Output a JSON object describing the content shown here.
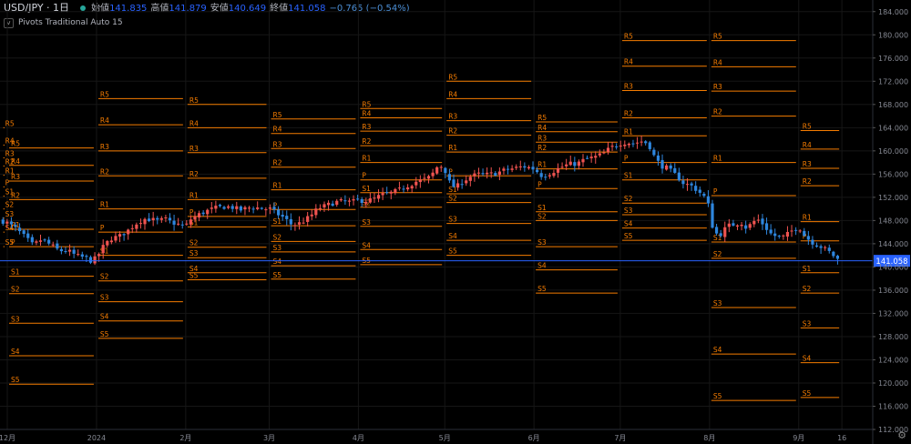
{
  "header": {
    "symbol": "USD/JPY · 1日",
    "open_label": "始値",
    "open": "141.835",
    "high_label": "高値",
    "high": "141.879",
    "low_label": "安値",
    "low": "140.649",
    "close_label": "終値",
    "close": "141.058",
    "change": "−0.765 (−0.54%)"
  },
  "indicator": {
    "name": "Pivots Traditional Auto 15"
  },
  "current_price_label": "141.058",
  "colors": {
    "up": "#ef5350",
    "down": "#2e86de",
    "pivot": "#f57c00",
    "price_line": "#2962ff",
    "grid": "#161616"
  },
  "chart_data": {
    "type": "candlestick",
    "ylim": [
      112,
      186
    ],
    "y_ticks": [
      "184.000",
      "180.000",
      "176.000",
      "172.000",
      "168.000",
      "164.000",
      "160.000",
      "156.000",
      "152.000",
      "148.000",
      "144.000",
      "140.000",
      "136.000",
      "132.000",
      "128.000",
      "124.000",
      "120.000",
      "116.000",
      "112.000"
    ],
    "x_ticks": [
      {
        "label": "12月",
        "x": 0
      },
      {
        "label": "2024",
        "x": 31
      },
      {
        "label": "2月",
        "x": 62
      },
      {
        "label": "3月",
        "x": 91
      },
      {
        "label": "4月",
        "x": 122
      },
      {
        "label": "5月",
        "x": 152
      },
      {
        "label": "6月",
        "x": 183
      },
      {
        "label": "7月",
        "x": 213
      },
      {
        "label": "8月",
        "x": 244
      },
      {
        "label": "9月",
        "x": 275
      },
      {
        "label": "16",
        "x": 290
      }
    ],
    "x_range": [
      -2,
      300
    ],
    "path": [
      [
        -2,
        148
      ],
      [
        0,
        147.6
      ],
      [
        3,
        146.6
      ],
      [
        6,
        145.2
      ],
      [
        9,
        143.7
      ],
      [
        12,
        144.8
      ],
      [
        15,
        143.8
      ],
      [
        18,
        142.8
      ],
      [
        21,
        142.8
      ],
      [
        24,
        141.9
      ],
      [
        27,
        141.6
      ],
      [
        29,
        141.1
      ],
      [
        31,
        141.5
      ],
      [
        33,
        143.3
      ],
      [
        36,
        144.9
      ],
      [
        39,
        145.3
      ],
      [
        42,
        146.3
      ],
      [
        44,
        147.2
      ],
      [
        46,
        147.9
      ],
      [
        48,
        148.3
      ],
      [
        50,
        148.2
      ],
      [
        52,
        147.9
      ],
      [
        55,
        148.2
      ],
      [
        57,
        147.7
      ],
      [
        59,
        147.4
      ],
      [
        61,
        147.1
      ],
      [
        62,
        146.9
      ],
      [
        63,
        148.0
      ],
      [
        66,
        148.9
      ],
      [
        69,
        149.6
      ],
      [
        72,
        150.1
      ],
      [
        75,
        150.4
      ],
      [
        78,
        150.3
      ],
      [
        81,
        149.8
      ],
      [
        84,
        150.2
      ],
      [
        86,
        150.3
      ],
      [
        88,
        150.1
      ],
      [
        90,
        150.0
      ],
      [
        91,
        150.1
      ],
      [
        93,
        149.4
      ],
      [
        96,
        148.5
      ],
      [
        99,
        147.2
      ],
      [
        102,
        147.6
      ],
      [
        105,
        148.6
      ],
      [
        108,
        150.1
      ],
      [
        111,
        150.6
      ],
      [
        114,
        151.2
      ],
      [
        117,
        151.3
      ],
      [
        119,
        151.2
      ],
      [
        121,
        151.3
      ],
      [
        122,
        151.5
      ],
      [
        124,
        151.4
      ],
      [
        127,
        151.6
      ],
      [
        130,
        152.4
      ],
      [
        133,
        152.7
      ],
      [
        136,
        153.2
      ],
      [
        138,
        153.8
      ],
      [
        140,
        154.2
      ],
      [
        142,
        154.7
      ],
      [
        144,
        155.0
      ],
      [
        146,
        155.2
      ],
      [
        148,
        156.2
      ],
      [
        150,
        157.7
      ],
      [
        152,
        156.8
      ],
      [
        154,
        154.1
      ],
      [
        156,
        153.7
      ],
      [
        158,
        154.7
      ],
      [
        161,
        155.6
      ],
      [
        164,
        156.0
      ],
      [
        167,
        155.9
      ],
      [
        170,
        156.2
      ],
      [
        173,
        156.7
      ],
      [
        176,
        157.0
      ],
      [
        178,
        157.2
      ],
      [
        180,
        157.3
      ],
      [
        183,
        156.9
      ],
      [
        184,
        156.5
      ],
      [
        186,
        155.6
      ],
      [
        189,
        156.3
      ],
      [
        192,
        157.1
      ],
      [
        195,
        157.7
      ],
      [
        198,
        157.8
      ],
      [
        201,
        158.6
      ],
      [
        204,
        158.9
      ],
      [
        207,
        159.5
      ],
      [
        209,
        160.3
      ],
      [
        211,
        160.9
      ],
      [
        213,
        161.3
      ],
      [
        215,
        161.5
      ],
      [
        217,
        161.3
      ],
      [
        219,
        161.5
      ],
      [
        221,
        161.7
      ],
      [
        223,
        161.0
      ],
      [
        225,
        158.8
      ],
      [
        227,
        157.5
      ],
      [
        229,
        157.1
      ],
      [
        231,
        156.3
      ],
      [
        233,
        155.5
      ],
      [
        235,
        154.4
      ],
      [
        238,
        153.9
      ],
      [
        240,
        153.1
      ],
      [
        242,
        152.2
      ],
      [
        244,
        150.2
      ],
      [
        245,
        147.1
      ],
      [
        247,
        145.2
      ],
      [
        249,
        146.4
      ],
      [
        251,
        147.2
      ],
      [
        253,
        147.4
      ],
      [
        255,
        147.7
      ],
      [
        257,
        146.6
      ],
      [
        259,
        147.8
      ],
      [
        261,
        148.1
      ],
      [
        263,
        147.2
      ],
      [
        265,
        145.8
      ],
      [
        267,
        145.3
      ],
      [
        269,
        145.0
      ],
      [
        271,
        145.6
      ],
      [
        273,
        146.4
      ],
      [
        275,
        147.0
      ],
      [
        277,
        145.4
      ],
      [
        279,
        144.5
      ],
      [
        281,
        143.9
      ],
      [
        283,
        143.4
      ],
      [
        285,
        142.8
      ],
      [
        287,
        142.0
      ],
      [
        289,
        141.058
      ]
    ],
    "pivot_periods": [
      {
        "x0": -2,
        "x1": 0,
        "levels": {
          "R5": 164.0,
          "R4": 161.0,
          "R3": 158.8,
          "R2": 157.4,
          "R1": 155.8,
          "P": 153.8,
          "S1": 152.2,
          "S2": 150.0,
          "S3": 148.4,
          "S4": 146.0,
          "S5": 143.5
        }
      },
      {
        "x0": 0,
        "x1": 31,
        "levels": {
          "R5": 160.5,
          "R4": 157.5,
          "R3": 154.8,
          "R2": 151.6,
          "R1": 146.5,
          "P": 143.5,
          "S1": 138.4,
          "S2": 135.4,
          "S3": 130.3,
          "S4": 124.7,
          "S5": 119.8
        }
      },
      {
        "x0": 31,
        "x1": 62,
        "levels": {
          "R5": 169.0,
          "R4": 164.5,
          "R3": 160.0,
          "R2": 155.7,
          "R1": 150.0,
          "P": 146.0,
          "S1": 142.0,
          "S2": 137.6,
          "S3": 134.0,
          "S4": 130.7,
          "S5": 127.7
        }
      },
      {
        "x0": 62,
        "x1": 91,
        "levels": {
          "R5": 168.0,
          "R4": 164.0,
          "R3": 159.7,
          "R2": 155.3,
          "R1": 151.6,
          "P": 148.7,
          "S1": 146.9,
          "S2": 143.4,
          "S3": 141.6,
          "S4": 139.0,
          "S5": 137.8
        }
      },
      {
        "x0": 91,
        "x1": 122,
        "levels": {
          "R5": 165.5,
          "R4": 163.0,
          "R3": 160.4,
          "R2": 157.2,
          "R1": 153.3,
          "P": 149.9,
          "S1": 147.1,
          "S2": 144.4,
          "S3": 142.6,
          "S4": 140.2,
          "S5": 137.9
        }
      },
      {
        "x0": 122,
        "x1": 152,
        "levels": {
          "R5": 167.3,
          "R4": 165.7,
          "R3": 163.4,
          "R2": 160.9,
          "R1": 158.0,
          "P": 155.0,
          "S1": 152.8,
          "S2": 150.3,
          "S3": 147.0,
          "S4": 143.0,
          "S5": 140.4
        }
      },
      {
        "x0": 152,
        "x1": 183,
        "levels": {
          "R5": 172.0,
          "R4": 169.0,
          "R3": 165.2,
          "R2": 162.7,
          "R1": 159.8,
          "P": 155.7,
          "S1": 152.6,
          "S2": 151.1,
          "S3": 147.5,
          "S4": 144.6,
          "S5": 142.0
        }
      },
      {
        "x0": 183,
        "x1": 213,
        "levels": {
          "R5": 165.0,
          "R4": 163.3,
          "R3": 161.5,
          "R2": 159.8,
          "R1": 156.9,
          "P": 153.5,
          "S1": 149.5,
          "S2": 148.0,
          "S3": 143.5,
          "S4": 139.5,
          "S5": 135.5
        }
      },
      {
        "x0": 213,
        "x1": 244,
        "levels": {
          "R5": 179.0,
          "R4": 174.6,
          "R3": 170.4,
          "R2": 165.7,
          "R1": 162.6,
          "P": 158.0,
          "S1": 155.0,
          "S2": 151.0,
          "S3": 149.0,
          "S4": 146.7,
          "S5": 144.6
        }
      },
      {
        "x0": 244,
        "x1": 275,
        "levels": {
          "R5": 179.0,
          "R4": 174.5,
          "R3": 170.3,
          "R2": 166.0,
          "R1": 158.0,
          "P": 152.3,
          "S1": 144.3,
          "S2": 141.5,
          "S3": 133.0,
          "S4": 125.0,
          "S5": 117.0
        }
      },
      {
        "x0": 275,
        "x1": 290,
        "levels": {
          "R5": 163.5,
          "R4": 160.3,
          "R3": 157.0,
          "R2": 154.0,
          "R1": 147.8,
          "P": 144.5,
          "S1": 139.0,
          "S2": 135.5,
          "S3": 129.5,
          "S4": 123.5,
          "S5": 117.5
        }
      }
    ]
  }
}
